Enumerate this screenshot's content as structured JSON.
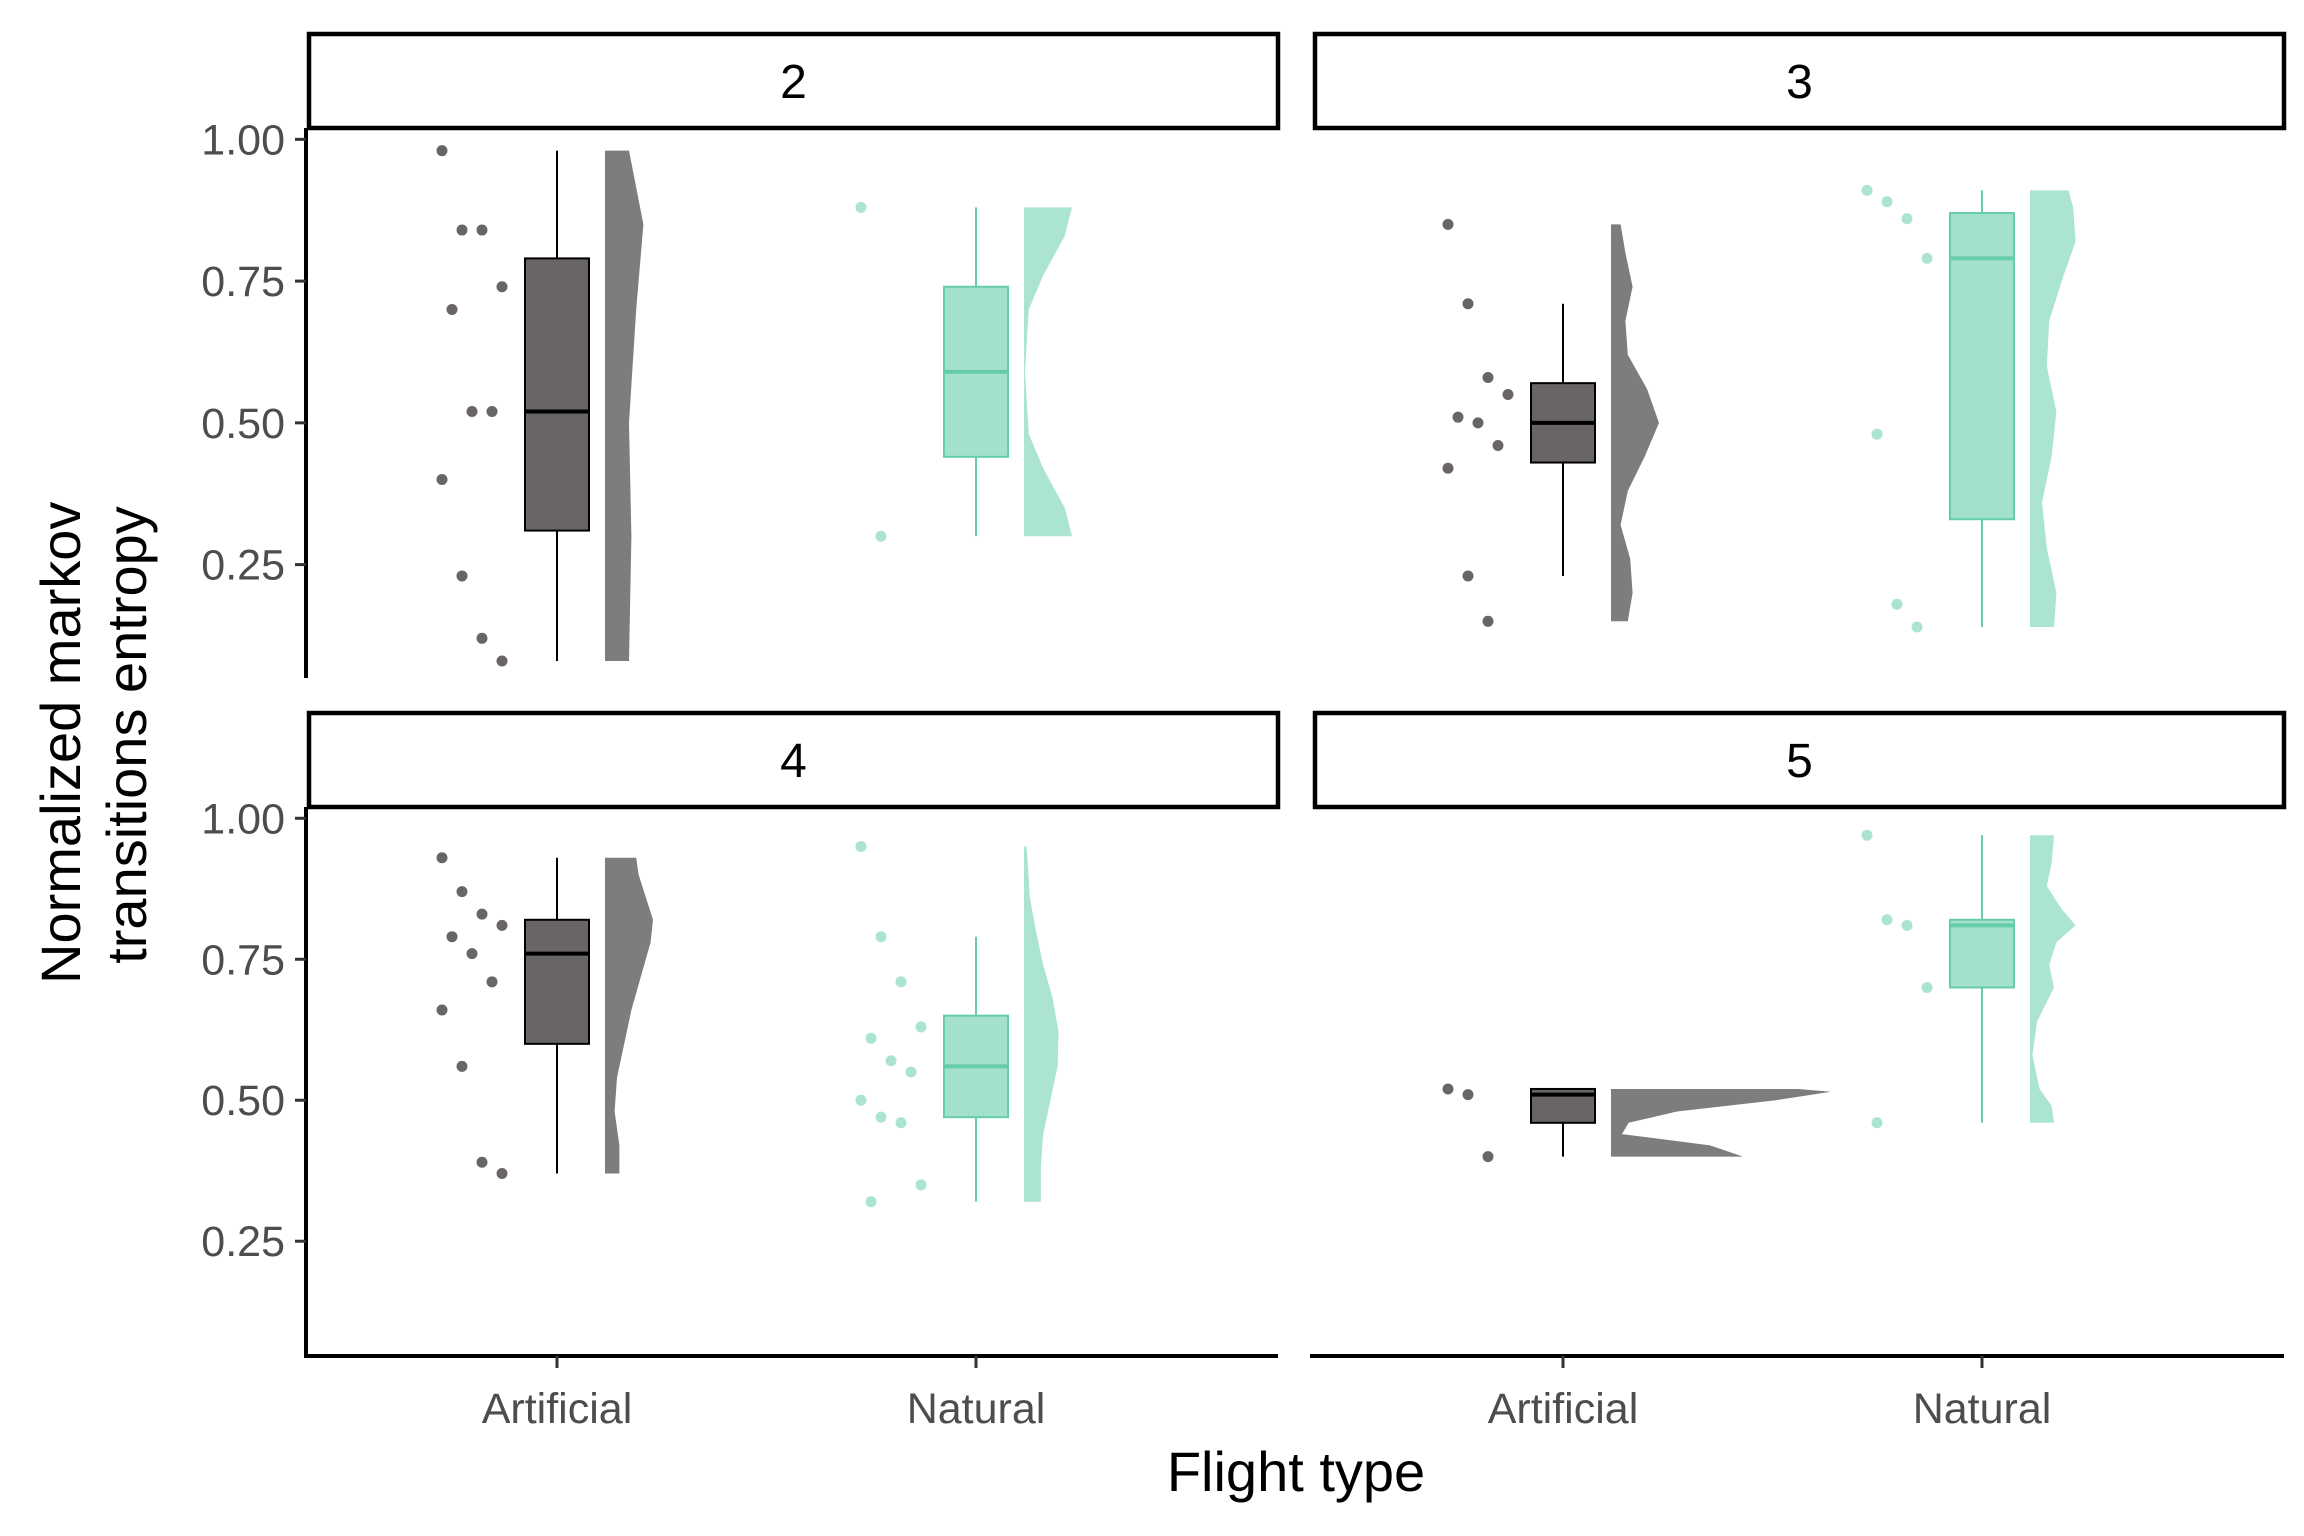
{
  "chart_data": {
    "type": "raincloud",
    "xlabel": "Flight type",
    "ylabel_lines": [
      "Normalized markov",
      "transitions entropy"
    ],
    "categories": [
      "Artificial",
      "Natural"
    ],
    "ylim": [
      0.05,
      1.02
    ],
    "yticks": [
      0.25,
      0.5,
      0.75,
      1.0
    ],
    "ytick_labels": [
      "0.25",
      "0.50",
      "0.75",
      "1.00"
    ],
    "colors": {
      "Artificial": "#696566",
      "Natural": "#66cdaa"
    },
    "panels": [
      {
        "label": "2",
        "groups": [
          {
            "name": "Artificial",
            "points": [
              0.98,
              0.84,
              0.84,
              0.74,
              0.7,
              0.52,
              0.52,
              0.4,
              0.23,
              0.12,
              0.08
            ],
            "box": {
              "min": 0.08,
              "q1": 0.31,
              "median": 0.52,
              "q3": 0.79,
              "max": 0.98
            },
            "density": [
              [
                0.08,
                0.5
              ],
              [
                0.3,
                0.55
              ],
              [
                0.5,
                0.5
              ],
              [
                0.7,
                0.65
              ],
              [
                0.85,
                0.8
              ],
              [
                0.98,
                0.5
              ]
            ]
          },
          {
            "name": "Natural",
            "points": [
              0.88,
              0.3
            ],
            "box": {
              "min": 0.3,
              "q1": 0.44,
              "median": 0.59,
              "q3": 0.74,
              "max": 0.88
            },
            "density": [
              [
                0.3,
                1.0
              ],
              [
                0.35,
                0.85
              ],
              [
                0.42,
                0.4
              ],
              [
                0.48,
                0.1
              ],
              [
                0.59,
                0.02
              ],
              [
                0.7,
                0.1
              ],
              [
                0.76,
                0.4
              ],
              [
                0.83,
                0.85
              ],
              [
                0.88,
                1.0
              ]
            ]
          }
        ]
      },
      {
        "label": "3",
        "groups": [
          {
            "name": "Artificial",
            "points": [
              0.85,
              0.71,
              0.58,
              0.55,
              0.51,
              0.5,
              0.46,
              0.42,
              0.23,
              0.15
            ],
            "box": {
              "min": 0.23,
              "q1": 0.43,
              "median": 0.5,
              "q3": 0.57,
              "max": 0.71
            },
            "density": [
              [
                0.15,
                0.35
              ],
              [
                0.2,
                0.45
              ],
              [
                0.26,
                0.4
              ],
              [
                0.32,
                0.2
              ],
              [
                0.38,
                0.35
              ],
              [
                0.44,
                0.7
              ],
              [
                0.5,
                1.0
              ],
              [
                0.56,
                0.75
              ],
              [
                0.62,
                0.35
              ],
              [
                0.68,
                0.3
              ],
              [
                0.74,
                0.45
              ],
              [
                0.8,
                0.3
              ],
              [
                0.85,
                0.2
              ]
            ]
          },
          {
            "name": "Natural",
            "points": [
              0.91,
              0.89,
              0.86,
              0.79,
              0.48,
              0.18,
              0.14
            ],
            "box": {
              "min": 0.14,
              "q1": 0.33,
              "median": 0.79,
              "q3": 0.87,
              "max": 0.91
            },
            "density": [
              [
                0.14,
                0.5
              ],
              [
                0.2,
                0.55
              ],
              [
                0.28,
                0.35
              ],
              [
                0.36,
                0.25
              ],
              [
                0.44,
                0.45
              ],
              [
                0.52,
                0.55
              ],
              [
                0.6,
                0.35
              ],
              [
                0.68,
                0.4
              ],
              [
                0.76,
                0.7
              ],
              [
                0.82,
                0.95
              ],
              [
                0.88,
                0.9
              ],
              [
                0.91,
                0.8
              ]
            ]
          }
        ]
      },
      {
        "label": "4",
        "groups": [
          {
            "name": "Artificial",
            "points": [
              0.93,
              0.87,
              0.83,
              0.81,
              0.79,
              0.76,
              0.71,
              0.66,
              0.56,
              0.39,
              0.37
            ],
            "box": {
              "min": 0.37,
              "q1": 0.6,
              "median": 0.76,
              "q3": 0.82,
              "max": 0.93
            },
            "density": [
              [
                0.37,
                0.3
              ],
              [
                0.42,
                0.3
              ],
              [
                0.48,
                0.2
              ],
              [
                0.54,
                0.25
              ],
              [
                0.6,
                0.4
              ],
              [
                0.66,
                0.55
              ],
              [
                0.72,
                0.75
              ],
              [
                0.78,
                0.95
              ],
              [
                0.82,
                1.0
              ],
              [
                0.86,
                0.85
              ],
              [
                0.9,
                0.7
              ],
              [
                0.93,
                0.65
              ]
            ]
          },
          {
            "name": "Natural",
            "points": [
              0.95,
              0.79,
              0.71,
              0.63,
              0.61,
              0.57,
              0.55,
              0.5,
              0.47,
              0.46,
              0.35,
              0.32
            ],
            "box": {
              "min": 0.32,
              "q1": 0.47,
              "median": 0.56,
              "q3": 0.65,
              "max": 0.79
            },
            "density": [
              [
                0.32,
                0.35
              ],
              [
                0.38,
                0.35
              ],
              [
                0.44,
                0.4
              ],
              [
                0.5,
                0.55
              ],
              [
                0.56,
                0.7
              ],
              [
                0.62,
                0.72
              ],
              [
                0.68,
                0.6
              ],
              [
                0.74,
                0.4
              ],
              [
                0.8,
                0.25
              ],
              [
                0.86,
                0.12
              ],
              [
                0.92,
                0.08
              ],
              [
                0.95,
                0.05
              ]
            ]
          }
        ]
      },
      {
        "label": "5",
        "groups": [
          {
            "name": "Artificial",
            "points": [
              0.52,
              0.51,
              0.4
            ],
            "box": {
              "min": 0.4,
              "q1": 0.46,
              "median": 0.51,
              "q3": 0.52,
              "max": 0.52
            },
            "density": [
              [
                0.4,
                0.6
              ],
              [
                0.42,
                0.45
              ],
              [
                0.44,
                0.05
              ],
              [
                0.46,
                0.08
              ],
              [
                0.48,
                0.3
              ],
              [
                0.5,
                0.75
              ],
              [
                0.515,
                1.0
              ],
              [
                0.52,
                0.85
              ]
            ]
          },
          {
            "name": "Natural",
            "points": [
              0.97,
              0.82,
              0.81,
              0.7,
              0.46
            ],
            "box": {
              "min": 0.46,
              "q1": 0.7,
              "median": 0.81,
              "q3": 0.82,
              "max": 0.97
            },
            "density": [
              [
                0.46,
                0.5
              ],
              [
                0.49,
                0.45
              ],
              [
                0.52,
                0.2
              ],
              [
                0.58,
                0.05
              ],
              [
                0.64,
                0.15
              ],
              [
                0.7,
                0.5
              ],
              [
                0.74,
                0.4
              ],
              [
                0.78,
                0.55
              ],
              [
                0.81,
                0.95
              ],
              [
                0.84,
                0.65
              ],
              [
                0.88,
                0.35
              ],
              [
                0.92,
                0.45
              ],
              [
                0.97,
                0.5
              ]
            ]
          }
        ]
      }
    ]
  }
}
